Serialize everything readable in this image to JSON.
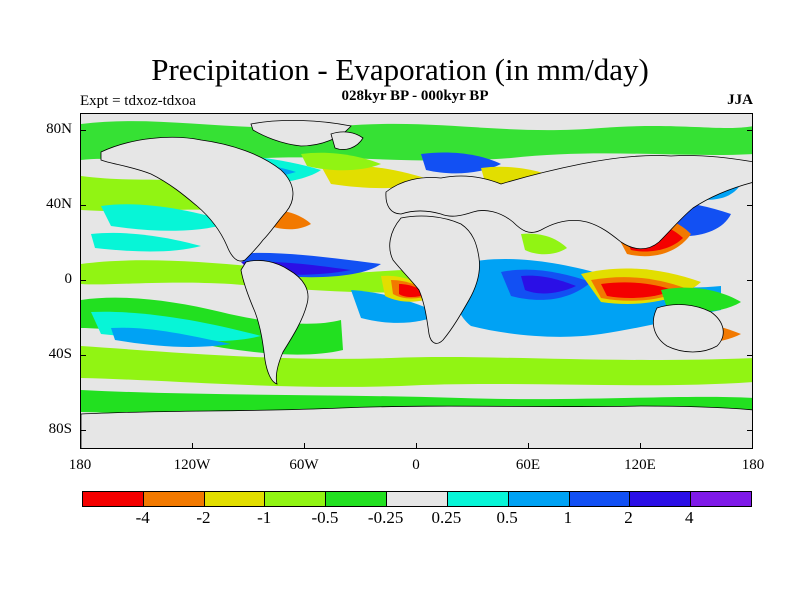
{
  "title": "Precipitation - Evaporation (in mm/day)",
  "subtitle": "028kyr BP - 000kyr BP",
  "experiment": "Expt = tdxoz-tdxoa",
  "season": "JJA",
  "y_ticks": [
    "80N",
    "40N",
    "0",
    "40S",
    "80S"
  ],
  "x_ticks": [
    "180",
    "120W",
    "60W",
    "0",
    "60E",
    "120E",
    "180"
  ],
  "colorbar": {
    "labels": [
      "-4",
      "-2",
      "-1",
      "-0.5",
      "-0.25",
      "0.25",
      "0.5",
      "1",
      "2",
      "4"
    ],
    "colors": [
      "#f40000",
      "#f27900",
      "#e2de00",
      "#91f413",
      "#22e020",
      "#e6e6e6",
      "#07f5d7",
      "#00a2f4",
      "#1250f3",
      "#2b0fe6",
      "#7f1ae8"
    ]
  },
  "map_data": {
    "projection": "cylindrical equidistant",
    "lon_range": [
      -180,
      180
    ],
    "lat_range": [
      -90,
      90
    ],
    "field": "P-E difference, contour-filled",
    "background_color": "#e6e6e6"
  }
}
